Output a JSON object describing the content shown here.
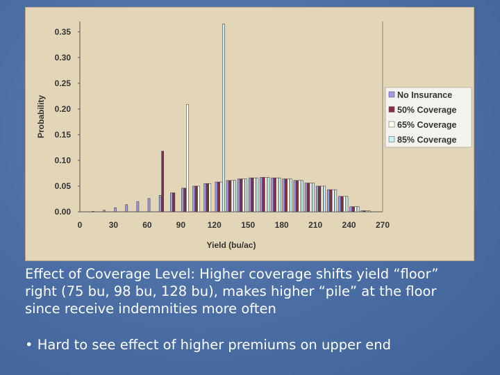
{
  "slide": {
    "caption": "Effect of Coverage Level: Higher coverage shifts yield “floor” right (75 bu, 98 bu, 128 bu), makes higher “pile” at the floor since receive indemnities more often",
    "bullet": "• Hard to see effect of higher premiums on upper end"
  },
  "chart_data": {
    "type": "bar",
    "title": "",
    "xlabel": "Yield (bu/ac)",
    "ylabel": "Probability",
    "xlim": [
      0,
      270
    ],
    "ylim": [
      0,
      0.37
    ],
    "xticks": [
      0,
      30,
      60,
      90,
      120,
      150,
      180,
      210,
      240,
      270
    ],
    "yticks": [
      0.0,
      0.05,
      0.1,
      0.15,
      0.2,
      0.25,
      0.3,
      0.35
    ],
    "ytick_labels": [
      "0.00",
      "0.05",
      "0.10",
      "0.15",
      "0.20",
      "0.25",
      "0.30",
      "0.35"
    ],
    "x": [
      15,
      25,
      35,
      45,
      55,
      65,
      75,
      85,
      95,
      105,
      115,
      125,
      135,
      145,
      155,
      165,
      175,
      185,
      195,
      205,
      215,
      225,
      235,
      245,
      255
    ],
    "legend_position": "right",
    "series": [
      {
        "name": "No Insurance",
        "color": "#9a9ae8",
        "values": [
          0.001,
          0.003,
          0.008,
          0.014,
          0.02,
          0.026,
          0.032,
          0.037,
          0.046,
          0.05,
          0.055,
          0.058,
          0.061,
          0.064,
          0.066,
          0.067,
          0.066,
          0.064,
          0.061,
          0.056,
          0.05,
          0.043,
          0.03,
          0.01,
          0.002
        ]
      },
      {
        "name": "50% Coverage",
        "color": "#8a2a4a",
        "values": [
          0,
          0,
          0,
          0,
          0,
          0,
          0.118,
          0.037,
          0.046,
          0.05,
          0.055,
          0.058,
          0.061,
          0.064,
          0.066,
          0.067,
          0.066,
          0.064,
          0.061,
          0.056,
          0.05,
          0.043,
          0.03,
          0.01,
          0.002
        ]
      },
      {
        "name": "65% Coverage",
        "color": "#fffff0",
        "values": [
          0,
          0,
          0,
          0,
          0,
          0,
          0,
          0,
          0.209,
          0.05,
          0.055,
          0.058,
          0.061,
          0.064,
          0.066,
          0.067,
          0.066,
          0.064,
          0.061,
          0.056,
          0.05,
          0.043,
          0.03,
          0.01,
          0.002
        ]
      },
      {
        "name": "85% Coverage",
        "color": "#c8f0ee",
        "values": [
          0,
          0,
          0,
          0,
          0,
          0,
          0,
          0,
          0,
          0,
          0,
          0.365,
          0.061,
          0.064,
          0.066,
          0.067,
          0.066,
          0.064,
          0.061,
          0.056,
          0.05,
          0.043,
          0.03,
          0.01,
          0.002
        ]
      }
    ]
  }
}
